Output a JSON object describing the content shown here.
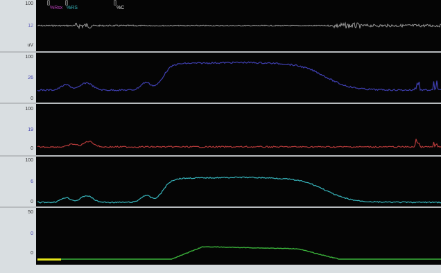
{
  "colors": {
    "emg": "#9a9a9a",
    "blue": "#3f3fb0",
    "red": "#b53a3a",
    "cyan": "#38b8bf",
    "green": "#3bb33b",
    "yellow": "#e6e61a",
    "magenta": "#c040c0"
  },
  "legend": {
    "marker1": "[]",
    "label1": "%Rsx",
    "marker2": "[]",
    "label2": "%RS",
    "marker3": "[]",
    "label3": "%C"
  },
  "panels": [
    {
      "ticks": [
        "100",
        "12",
        "uV"
      ],
      "trace": "emg",
      "color_key": "emg"
    },
    {
      "ticks": [
        "100",
        "26",
        "0"
      ],
      "trace": "blue",
      "color_key": "blue"
    },
    {
      "ticks": [
        "100",
        "19",
        "0"
      ],
      "trace": "red",
      "color_key": "red"
    },
    {
      "ticks": [
        "100",
        "6",
        "0"
      ],
      "trace": "cyan",
      "color_key": "cyan"
    },
    {
      "ticks": [
        "50",
        "0",
        "0"
      ],
      "trace": "green",
      "color_key": "green"
    }
  ]
}
